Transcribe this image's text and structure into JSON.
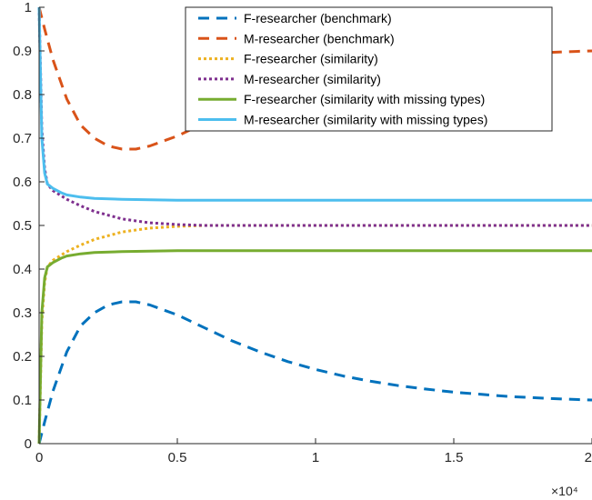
{
  "chart_data": {
    "type": "line",
    "title": "",
    "xlabel": "",
    "ylabel": "",
    "xlim": [
      0,
      20000
    ],
    "ylim": [
      0,
      1
    ],
    "x_ticks": [
      {
        "value": 0,
        "label": "0"
      },
      {
        "value": 5000,
        "label": "0.5"
      },
      {
        "value": 10000,
        "label": "1"
      },
      {
        "value": 15000,
        "label": "1.5"
      },
      {
        "value": 20000,
        "label": "2"
      }
    ],
    "x_exponent_label": "×10⁴",
    "y_ticks": [
      {
        "value": 0,
        "label": "0"
      },
      {
        "value": 0.1,
        "label": "0.1"
      },
      {
        "value": 0.2,
        "label": "0.2"
      },
      {
        "value": 0.3,
        "label": "0.3"
      },
      {
        "value": 0.4,
        "label": "0.4"
      },
      {
        "value": 0.5,
        "label": "0.5"
      },
      {
        "value": 0.6,
        "label": "0.6"
      },
      {
        "value": 0.7,
        "label": "0.7"
      },
      {
        "value": 0.8,
        "label": "0.8"
      },
      {
        "value": 0.9,
        "label": "0.9"
      },
      {
        "value": 1,
        "label": "1"
      }
    ],
    "grid": false,
    "legend_position": "top-right",
    "series": [
      {
        "name": "F-researcher (benchmark)",
        "color": "#0072BD",
        "style": "dashed",
        "x": [
          0,
          200,
          500,
          1000,
          1500,
          2000,
          2500,
          3000,
          3500,
          4000,
          5000,
          6000,
          7000,
          8000,
          9000,
          10000,
          11000,
          12000,
          13000,
          14000,
          15000,
          16000,
          17000,
          18000,
          19000,
          20000
        ],
        "y": [
          0,
          0.05,
          0.12,
          0.21,
          0.27,
          0.3,
          0.318,
          0.325,
          0.325,
          0.318,
          0.295,
          0.265,
          0.235,
          0.21,
          0.188,
          0.17,
          0.155,
          0.143,
          0.133,
          0.125,
          0.118,
          0.113,
          0.108,
          0.105,
          0.102,
          0.1
        ]
      },
      {
        "name": "M-researcher (benchmark)",
        "color": "#D95319",
        "style": "dashed",
        "x": [
          0,
          200,
          500,
          1000,
          1500,
          2000,
          2500,
          3000,
          3500,
          4000,
          5000,
          6000,
          7000,
          8000,
          9000,
          10000,
          11000,
          12000,
          13000,
          14000,
          15000,
          16000,
          17000,
          18000,
          19000,
          20000
        ],
        "y": [
          1,
          0.95,
          0.88,
          0.79,
          0.73,
          0.7,
          0.682,
          0.675,
          0.675,
          0.682,
          0.705,
          0.735,
          0.765,
          0.79,
          0.812,
          0.83,
          0.845,
          0.857,
          0.867,
          0.875,
          0.882,
          0.887,
          0.892,
          0.895,
          0.898,
          0.9
        ]
      },
      {
        "name": "F-researcher (similarity)",
        "color": "#EDB120",
        "style": "dotted",
        "x": [
          0,
          100,
          200,
          300,
          500,
          1000,
          1500,
          2000,
          3000,
          4000,
          5000,
          6000,
          8000,
          10000,
          15000,
          20000
        ],
        "y": [
          0,
          0.28,
          0.37,
          0.405,
          0.42,
          0.44,
          0.455,
          0.468,
          0.485,
          0.494,
          0.498,
          0.5,
          0.5,
          0.5,
          0.5,
          0.5
        ]
      },
      {
        "name": "M-researcher (similarity)",
        "color": "#7E2F8E",
        "style": "dotted",
        "x": [
          0,
          100,
          200,
          300,
          500,
          1000,
          1500,
          2000,
          3000,
          4000,
          5000,
          6000,
          8000,
          10000,
          15000,
          20000
        ],
        "y": [
          1,
          0.72,
          0.63,
          0.595,
          0.58,
          0.56,
          0.545,
          0.532,
          0.515,
          0.506,
          0.502,
          0.5,
          0.5,
          0.5,
          0.5,
          0.5
        ]
      },
      {
        "name": "F-researcher (similarity with missing types)",
        "color": "#77AC30",
        "style": "solid",
        "x": [
          0,
          100,
          200,
          300,
          500,
          800,
          1000,
          1500,
          2000,
          3000,
          4000,
          5000,
          7000,
          10000,
          15000,
          20000
        ],
        "y": [
          0,
          0.3,
          0.38,
          0.405,
          0.415,
          0.425,
          0.43,
          0.435,
          0.438,
          0.44,
          0.441,
          0.442,
          0.442,
          0.442,
          0.442,
          0.442
        ]
      },
      {
        "name": "M-researcher (similarity with missing types)",
        "color": "#4DBEEE",
        "style": "solid",
        "x": [
          0,
          100,
          200,
          300,
          500,
          800,
          1000,
          1500,
          2000,
          3000,
          4000,
          5000,
          7000,
          10000,
          15000,
          20000
        ],
        "y": [
          1,
          0.7,
          0.62,
          0.595,
          0.585,
          0.575,
          0.57,
          0.565,
          0.562,
          0.56,
          0.559,
          0.558,
          0.558,
          0.558,
          0.558,
          0.558
        ]
      }
    ]
  }
}
